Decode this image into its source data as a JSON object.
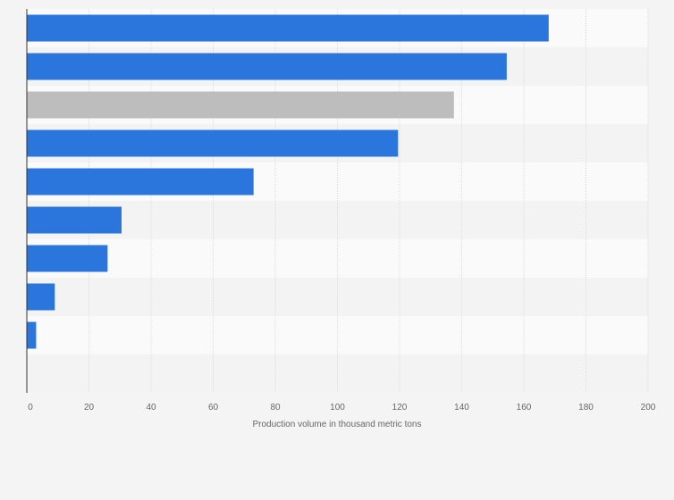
{
  "chart_data": {
    "type": "bar",
    "orientation": "horizontal",
    "categories": [
      "",
      "",
      "",
      "",
      "",
      "",
      "",
      "",
      "",
      ""
    ],
    "values": [
      168,
      154.5,
      137.5,
      119.5,
      73,
      30.5,
      26,
      9,
      3,
      null
    ],
    "bar_colors": [
      "#2a76dd",
      "#2a76dd",
      "#bdbdbd",
      "#2a76dd",
      "#2a76dd",
      "#2a76dd",
      "#2a76dd",
      "#2a76dd",
      "#2a76dd",
      "#2a76dd"
    ],
    "title": "",
    "xlabel": "Production volume in thousand metric tons",
    "ylabel": "",
    "xlim": [
      0,
      200
    ],
    "x_ticks": [
      0,
      20,
      40,
      60,
      80,
      100,
      120,
      140,
      160,
      180,
      200
    ],
    "x_tick_labels": [
      "0",
      "20",
      "40",
      "60",
      "80",
      "100",
      "120",
      "140",
      "160",
      "180",
      "200"
    ],
    "grid": true,
    "legend": "none",
    "colors": {
      "primary_bar": "#2a76dd",
      "highlight_bar": "#bdbdbd",
      "background": "#f4f4f4",
      "band_light": "#fafafa",
      "band_dark": "#f3f3f3",
      "gridline": "#dcdcdc",
      "axis": "#333333"
    }
  }
}
